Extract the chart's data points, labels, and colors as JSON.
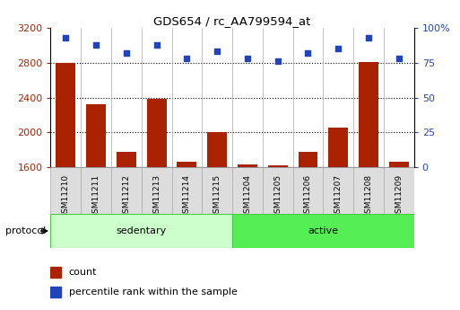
{
  "title": "GDS654 / rc_AA799594_at",
  "samples": [
    "GSM11210",
    "GSM11211",
    "GSM11212",
    "GSM11213",
    "GSM11214",
    "GSM11215",
    "GSM11204",
    "GSM11205",
    "GSM11206",
    "GSM11207",
    "GSM11208",
    "GSM11209"
  ],
  "counts": [
    2800,
    2320,
    1780,
    2390,
    1670,
    2010,
    1630,
    1620,
    1780,
    2060,
    2810,
    1660
  ],
  "percentiles": [
    93,
    88,
    82,
    88,
    78,
    83,
    78,
    76,
    82,
    85,
    93,
    78
  ],
  "bar_color": "#aa2200",
  "dot_color": "#2244bb",
  "ylim_left": [
    1600,
    3200
  ],
  "ylim_right": [
    0,
    100
  ],
  "yticks_left": [
    1600,
    2000,
    2400,
    2800,
    3200
  ],
  "yticks_right": [
    0,
    25,
    50,
    75,
    100
  ],
  "ytick_right_labels": [
    "0",
    "25",
    "50",
    "75",
    "100%"
  ],
  "groups": [
    {
      "label": "sedentary",
      "start": 0,
      "end": 6,
      "color": "#ccffcc",
      "edge": "#44cc44"
    },
    {
      "label": "active",
      "start": 6,
      "end": 12,
      "color": "#55ee55",
      "edge": "#44cc44"
    }
  ],
  "protocol_label": "protocol",
  "legend_count": "count",
  "legend_pct": "percentile rank within the sample",
  "grid_color": "#000000",
  "bg_color": "#ffffff",
  "label_bg": "#dddddd",
  "label_edge": "#aaaaaa"
}
